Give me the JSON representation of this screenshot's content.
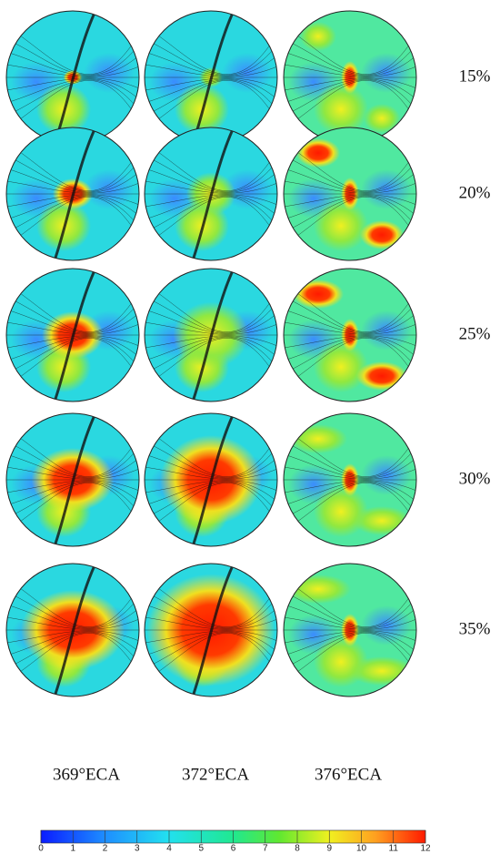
{
  "rows": [
    "15%",
    "20%",
    "25%",
    "30%",
    "35%"
  ],
  "columns": [
    "369°ECA",
    "372°ECA",
    "376°ECA"
  ],
  "colorbar": {
    "ticks": [
      0,
      1,
      2,
      3,
      4,
      5,
      6,
      7,
      8,
      9,
      10,
      11,
      12
    ]
  }
}
